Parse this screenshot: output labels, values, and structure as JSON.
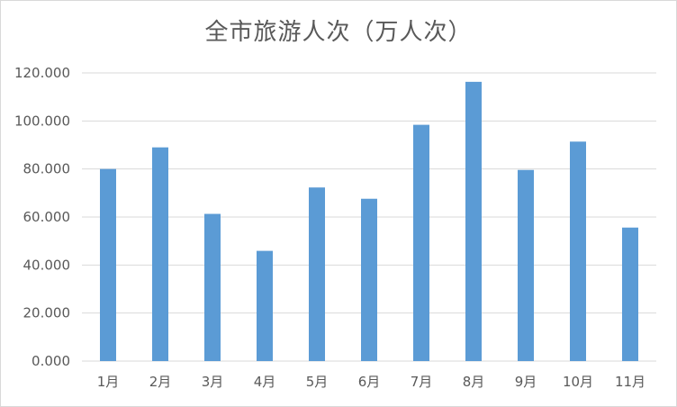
{
  "chart_data": {
    "type": "bar",
    "title": "全市旅游人次（万人次）",
    "categories": [
      "1月",
      "2月",
      "3月",
      "4月",
      "5月",
      "6月",
      "7月",
      "8月",
      "9月",
      "10月",
      "11月"
    ],
    "values": [
      80.0,
      89.0,
      61.3,
      45.9,
      72.3,
      67.6,
      98.4,
      116.3,
      79.6,
      91.4,
      55.6
    ],
    "ylim": [
      0,
      120
    ],
    "yticks": [
      "0.000",
      "20.000",
      "40.000",
      "60.000",
      "80.000",
      "100.000",
      "120.000"
    ],
    "ytick_values": [
      0,
      20,
      40,
      60,
      80,
      100,
      120
    ],
    "grid": true,
    "bar_color": "#5b9bd5",
    "grid_color": "#d9d9d9"
  }
}
